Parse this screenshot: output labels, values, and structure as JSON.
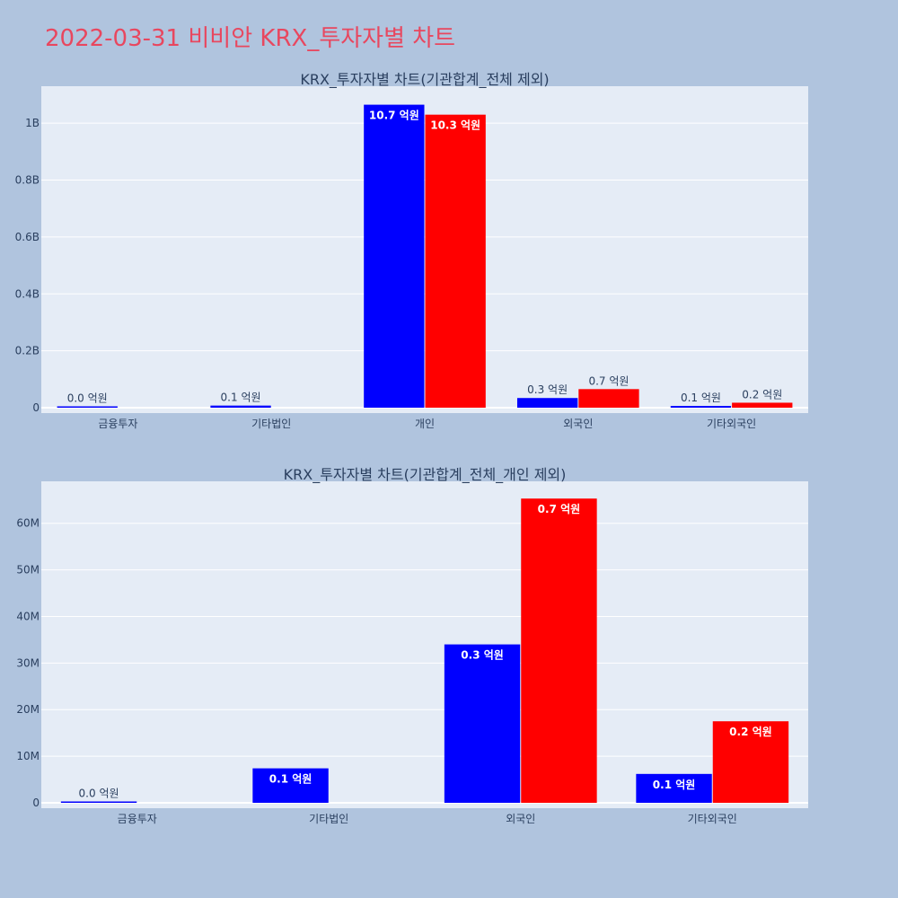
{
  "page": {
    "title": "2022-03-31 비비안 KRX_투자자별 차트"
  },
  "colors": {
    "background": "#b0c4de",
    "plot_bg": "#e5ecf6",
    "grid": "#ffffff",
    "title": "#e8475f",
    "text": "#2a3f5f"
  },
  "chart_data": [
    {
      "type": "bar",
      "title": "KRX_투자자별 차트(기관합계_전체 제외)",
      "categories": [
        "금융투자",
        "기타법인",
        "개인",
        "외국인",
        "기타외국인"
      ],
      "ylim": [
        0,
        1130000000
      ],
      "yticks": [
        0,
        200000000,
        400000000,
        600000000,
        800000000,
        1000000000
      ],
      "ytick_labels": [
        "0",
        "0.2B",
        "0.4B",
        "0.6B",
        "0.8B",
        "1B"
      ],
      "grid": true,
      "series": [
        {
          "color": "#0000ff",
          "values": [
            120000,
            7400000,
            1065000000,
            34000000,
            6200000
          ],
          "labels": [
            "0.0 억원",
            "0.1 억원",
            "10.7 억원",
            "0.3 억원",
            "0.1 억원"
          ]
        },
        {
          "color": "#ff0000",
          "values": [
            0,
            0,
            1030000000,
            65300000,
            17500000
          ],
          "labels": [
            "",
            "",
            "10.3 억원",
            "0.7 억원",
            "0.2 억원"
          ]
        }
      ]
    },
    {
      "type": "bar",
      "title": "KRX_투자자별 차트(기관합계_전체_개인 제외)",
      "categories": [
        "금융투자",
        "기타법인",
        "외국인",
        "기타외국인"
      ],
      "ylim": [
        0,
        69000000
      ],
      "yticks": [
        0,
        10000000,
        20000000,
        30000000,
        40000000,
        50000000,
        60000000
      ],
      "ytick_labels": [
        "0",
        "10M",
        "20M",
        "30M",
        "40M",
        "50M",
        "60M"
      ],
      "grid": true,
      "series": [
        {
          "color": "#0000ff",
          "values": [
            120000,
            7400000,
            34000000,
            6200000
          ],
          "labels": [
            "0.0 억원",
            "0.1 억원",
            "0.3 억원",
            "0.1 억원"
          ]
        },
        {
          "color": "#ff0000",
          "values": [
            0,
            0,
            65300000,
            17500000
          ],
          "labels": [
            "",
            "",
            "0.7 억원",
            "0.2 억원"
          ]
        }
      ]
    }
  ]
}
